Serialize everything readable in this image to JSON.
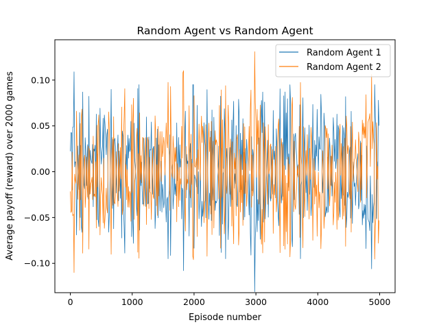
{
  "chart_data": {
    "type": "line",
    "title": "Random Agent vs Random Agent",
    "xlabel": "Episode number",
    "ylabel": "Average payoff (reward) over 2000 games",
    "xlim": [
      -250,
      5250
    ],
    "ylim": [
      -0.132,
      0.144
    ],
    "xticks": [
      0,
      1000,
      2000,
      3000,
      4000,
      5000
    ],
    "xtick_labels": [
      "0",
      "1000",
      "2000",
      "3000",
      "4000",
      "5000"
    ],
    "yticks": [
      -0.1,
      -0.05,
      0.0,
      0.05,
      0.1
    ],
    "ytick_labels": [
      "−0.10",
      "−0.05",
      "0.00",
      "0.05",
      "0.10"
    ],
    "grid": false,
    "legend_position": "top-right",
    "n_points": 500,
    "x_step": 10,
    "series": [
      {
        "name": "Random Agent 1",
        "color": "#1f77b4",
        "extremes": [
          [
            60,
            0.109
          ],
          [
            1830,
            -0.108
          ],
          [
            2980,
            -0.131
          ],
          [
            4870,
            -0.106
          ],
          [
            4980,
            0.078
          ]
        ]
      },
      {
        "name": "Random Agent 2",
        "color": "#ff7f0e",
        "extremes": [
          [
            60,
            -0.11
          ],
          [
            1820,
            0.108
          ],
          [
            2980,
            0.131
          ],
          [
            4870,
            0.106
          ],
          [
            4980,
            -0.078
          ]
        ]
      }
    ]
  }
}
